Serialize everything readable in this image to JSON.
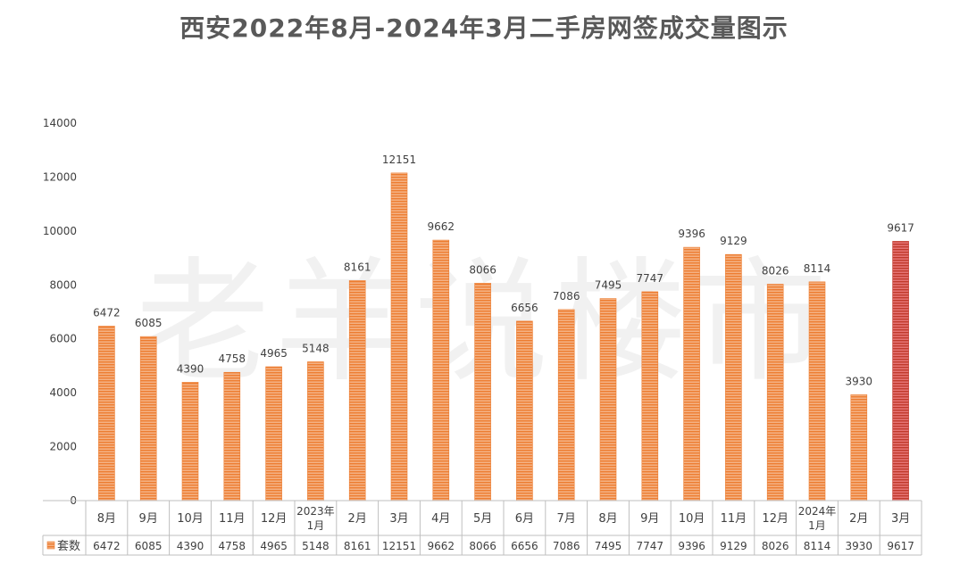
{
  "title": "西安2022年8月-2024年3月二手房网签成交量图示",
  "watermark": "老羊说楼市",
  "colors": {
    "bar": "#ED7D31",
    "bar_highlight": "#C0392B",
    "axis": "#BFBFBF",
    "text": "#404040"
  },
  "chart_data": {
    "type": "bar",
    "title": "西安2022年8月-2024年3月二手房网签成交量图示",
    "xlabel": "",
    "ylabel": "",
    "ylim": [
      0,
      14000
    ],
    "yticks": [
      0,
      2000,
      4000,
      6000,
      8000,
      10000,
      12000,
      14000
    ],
    "grid": false,
    "legend": "data-table",
    "categories": [
      "8月",
      "9月",
      "10月",
      "11月",
      "12月",
      "2023年1月",
      "2月",
      "3月",
      "4月",
      "5月",
      "6月",
      "7月",
      "8月",
      "9月",
      "10月",
      "11月",
      "12月",
      "2024年1月",
      "2月",
      "3月"
    ],
    "series": [
      {
        "name": "套数",
        "values": [
          6472,
          6085,
          4390,
          4758,
          4965,
          5148,
          8161,
          12151,
          9662,
          8066,
          6656,
          7086,
          7495,
          7747,
          9396,
          9129,
          8026,
          8114,
          3930,
          9617
        ]
      }
    ],
    "highlight_last": true,
    "data_labels": true
  }
}
